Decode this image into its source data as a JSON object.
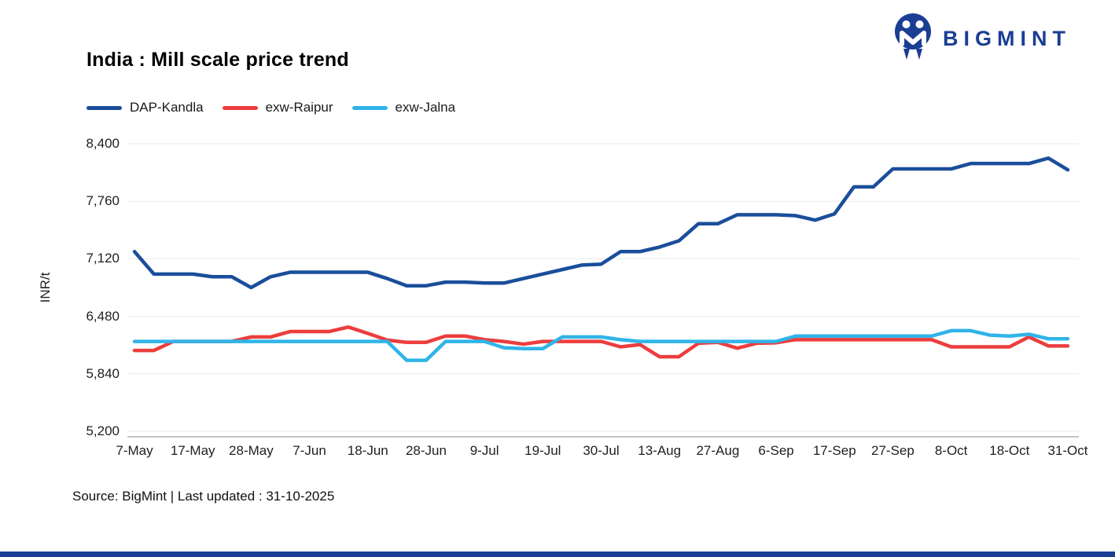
{
  "brand": {
    "name": "BIGMINT",
    "color": "#1b3e94",
    "icon": "bigmint-m-roundel"
  },
  "footer": {
    "source": "Source: BigMint | Last updated : 31-10-2025"
  },
  "colors": {
    "gridline": "#e9e9e9",
    "axis_line": "#c4c4c4",
    "bottom_bar": "#1b3e94"
  },
  "chart_data": {
    "type": "line",
    "title": "India : Mill scale price trend",
    "xlabel": "",
    "ylabel": "INR/t",
    "ylim": [
      5200,
      8400
    ],
    "grid": "horizontal",
    "legend_position": "top-left",
    "y_ticks": [
      {
        "value": 8400,
        "label": "8,400"
      },
      {
        "value": 7760,
        "label": "7,760"
      },
      {
        "value": 7120,
        "label": "7,120"
      },
      {
        "value": 6480,
        "label": "6,480"
      },
      {
        "value": 5840,
        "label": "5,840"
      },
      {
        "value": 5200,
        "label": "5,200"
      }
    ],
    "x_tick_labels": [
      "7-May",
      "17-May",
      "28-May",
      "7-Jun",
      "18-Jun",
      "28-Jun",
      "9-Jul",
      "19-Jul",
      "30-Jul",
      "13-Aug",
      "27-Aug",
      "6-Sep",
      "17-Sep",
      "27-Sep",
      "8-Oct",
      "18-Oct",
      "31-Oct"
    ],
    "tick_every": 3,
    "n_points": 49,
    "series": [
      {
        "name": "DAP-Kandla",
        "color": "#1a4e9b",
        "values": [
          7200,
          6950,
          6950,
          6950,
          6920,
          6920,
          6800,
          6920,
          6970,
          6970,
          6970,
          6970,
          6970,
          6900,
          6820,
          6820,
          6860,
          6860,
          6850,
          6850,
          6900,
          6950,
          7000,
          7050,
          7060,
          7200,
          7200,
          7250,
          7320,
          7510,
          7510,
          7610,
          7610,
          7610,
          7600,
          7550,
          7620,
          7920,
          7920,
          8120,
          8120,
          8120,
          8120,
          8180,
          8180,
          8180,
          8180,
          8240,
          8110
        ]
      },
      {
        "name": "exw-Raipur",
        "color": "#ed3d3d",
        "values": [
          6100,
          6100,
          6200,
          6200,
          6200,
          6200,
          6250,
          6250,
          6310,
          6310,
          6310,
          6360,
          6290,
          6215,
          6190,
          6190,
          6260,
          6260,
          6220,
          6200,
          6170,
          6200,
          6200,
          6200,
          6200,
          6140,
          6165,
          6030,
          6030,
          6180,
          6190,
          6125,
          6180,
          6185,
          6220,
          6220,
          6220,
          6220,
          6220,
          6220,
          6220,
          6220,
          6140,
          6140,
          6140,
          6140,
          6250,
          6150,
          6150
        ]
      },
      {
        "name": "exw-Jalna",
        "color": "#30b4e8",
        "values": [
          6200,
          6200,
          6200,
          6200,
          6200,
          6200,
          6200,
          6200,
          6200,
          6200,
          6200,
          6200,
          6200,
          6200,
          5990,
          5990,
          6200,
          6200,
          6200,
          6130,
          6120,
          6120,
          6250,
          6250,
          6250,
          6220,
          6200,
          6200,
          6200,
          6200,
          6200,
          6200,
          6200,
          6200,
          6260,
          6260,
          6260,
          6260,
          6260,
          6260,
          6260,
          6260,
          6320,
          6320,
          6270,
          6260,
          6280,
          6230,
          6230
        ]
      }
    ]
  }
}
